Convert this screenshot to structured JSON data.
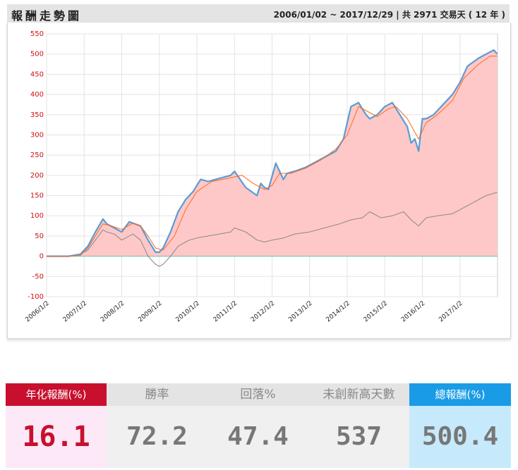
{
  "header": {
    "title": "報酬走勢圖",
    "range": "2006/01/02 ~ 2017/12/29 | 共 2971 交易天 ( 12 年 )"
  },
  "colors": {
    "strategy_line": "#5b9bd5",
    "ma_line": "#ff6a1a",
    "benchmark_line": "#888888",
    "fill": "#ffc8c8",
    "axis_tick": "#d01010"
  },
  "chart_data": {
    "type": "area",
    "title": "",
    "xlabel": "",
    "ylabel": "",
    "ylim": [
      -100,
      550
    ],
    "yticks": [
      -100,
      -50,
      0,
      50,
      100,
      150,
      200,
      250,
      300,
      350,
      400,
      450,
      500,
      550
    ],
    "xticks": [
      "2006/1/2",
      "2007/1/2",
      "2008/1/2",
      "2009/1/2",
      "2010/1/2",
      "2011/1/2",
      "2012/1/2",
      "2013/1/2",
      "2014/1/2",
      "2015/1/2",
      "2016/1/2",
      "2017/1/2"
    ],
    "grid": true,
    "series": [
      {
        "name": "",
        "kind": "strategy",
        "x": [
          2006.0,
          2006.3,
          2006.6,
          2006.9,
          2007.1,
          2007.3,
          2007.5,
          2007.6,
          2007.8,
          2008.0,
          2008.2,
          2008.5,
          2008.7,
          2008.9,
          2009.0,
          2009.1,
          2009.3,
          2009.5,
          2009.7,
          2009.9,
          2010.1,
          2010.3,
          2010.5,
          2010.7,
          2010.9,
          2011.0,
          2011.3,
          2011.6,
          2011.7,
          2011.8,
          2011.9,
          2012.1,
          2012.3,
          2012.4,
          2012.6,
          2012.9,
          2013.1,
          2013.4,
          2013.7,
          2013.9,
          2014.1,
          2014.3,
          2014.5,
          2014.6,
          2014.8,
          2015.0,
          2015.2,
          2015.4,
          2015.6,
          2015.7,
          2015.8,
          2015.9,
          2016.0,
          2016.1,
          2016.3,
          2016.5,
          2016.8,
          2017.0,
          2017.2,
          2017.5,
          2017.7,
          2017.9,
          2017.99
        ],
        "values": [
          0,
          0,
          0,
          5,
          25,
          60,
          92,
          80,
          70,
          60,
          85,
          75,
          40,
          10,
          10,
          20,
          60,
          110,
          140,
          160,
          190,
          185,
          190,
          195,
          200,
          210,
          170,
          150,
          180,
          170,
          165,
          230,
          190,
          205,
          210,
          220,
          230,
          245,
          260,
          290,
          370,
          380,
          350,
          340,
          350,
          370,
          380,
          350,
          320,
          280,
          290,
          260,
          340,
          340,
          350,
          370,
          400,
          430,
          470,
          490,
          500,
          510,
          500
        ]
      },
      {
        "name": "",
        "kind": "moving-average",
        "x": [
          2006.0,
          2006.3,
          2006.6,
          2006.9,
          2007.1,
          2007.3,
          2007.5,
          2007.7,
          2008.0,
          2008.3,
          2008.5,
          2008.7,
          2008.9,
          2009.1,
          2009.4,
          2009.7,
          2010.0,
          2010.4,
          2010.8,
          2011.2,
          2011.5,
          2011.8,
          2012.0,
          2012.2,
          2012.5,
          2012.9,
          2013.3,
          2013.7,
          2014.0,
          2014.3,
          2014.5,
          2014.8,
          2015.1,
          2015.3,
          2015.6,
          2015.9,
          2016.1,
          2016.4,
          2016.8,
          2017.1,
          2017.5,
          2017.8,
          2017.99
        ],
        "values": [
          0,
          0,
          0,
          2,
          20,
          50,
          80,
          76,
          66,
          82,
          75,
          50,
          20,
          15,
          50,
          115,
          160,
          185,
          192,
          200,
          180,
          165,
          175,
          205,
          205,
          218,
          238,
          265,
          300,
          370,
          360,
          345,
          365,
          370,
          340,
          290,
          330,
          350,
          385,
          440,
          475,
          495,
          495
        ]
      },
      {
        "name": "",
        "kind": "benchmark",
        "x": [
          2006.0,
          2006.3,
          2006.5,
          2006.9,
          2007.1,
          2007.3,
          2007.5,
          2007.6,
          2007.8,
          2008.0,
          2008.3,
          2008.5,
          2008.7,
          2008.9,
          2009.0,
          2009.1,
          2009.3,
          2009.5,
          2009.8,
          2010.0,
          2010.3,
          2010.6,
          2010.9,
          2011.0,
          2011.3,
          2011.6,
          2011.8,
          2012.0,
          2012.3,
          2012.6,
          2013.0,
          2013.4,
          2013.8,
          2014.1,
          2014.4,
          2014.6,
          2014.9,
          2015.2,
          2015.5,
          2015.7,
          2015.9,
          2016.1,
          2016.4,
          2016.8,
          2017.0,
          2017.4,
          2017.7,
          2017.99
        ],
        "values": [
          0,
          0,
          0,
          5,
          15,
          40,
          65,
          60,
          55,
          40,
          55,
          40,
          0,
          -20,
          -25,
          -20,
          0,
          25,
          40,
          45,
          50,
          55,
          60,
          70,
          60,
          40,
          35,
          40,
          45,
          55,
          60,
          70,
          80,
          90,
          95,
          110,
          95,
          100,
          110,
          90,
          75,
          95,
          100,
          105,
          115,
          135,
          150,
          158
        ]
      }
    ]
  },
  "stats": [
    {
      "label": "年化報酬(%)",
      "value": "16.1"
    },
    {
      "label": "勝率",
      "value": "72.2"
    },
    {
      "label": "回落%",
      "value": "47.4"
    },
    {
      "label": "未創新高天數",
      "value": "537"
    },
    {
      "label": "總報酬(%)",
      "value": "500.4"
    }
  ]
}
